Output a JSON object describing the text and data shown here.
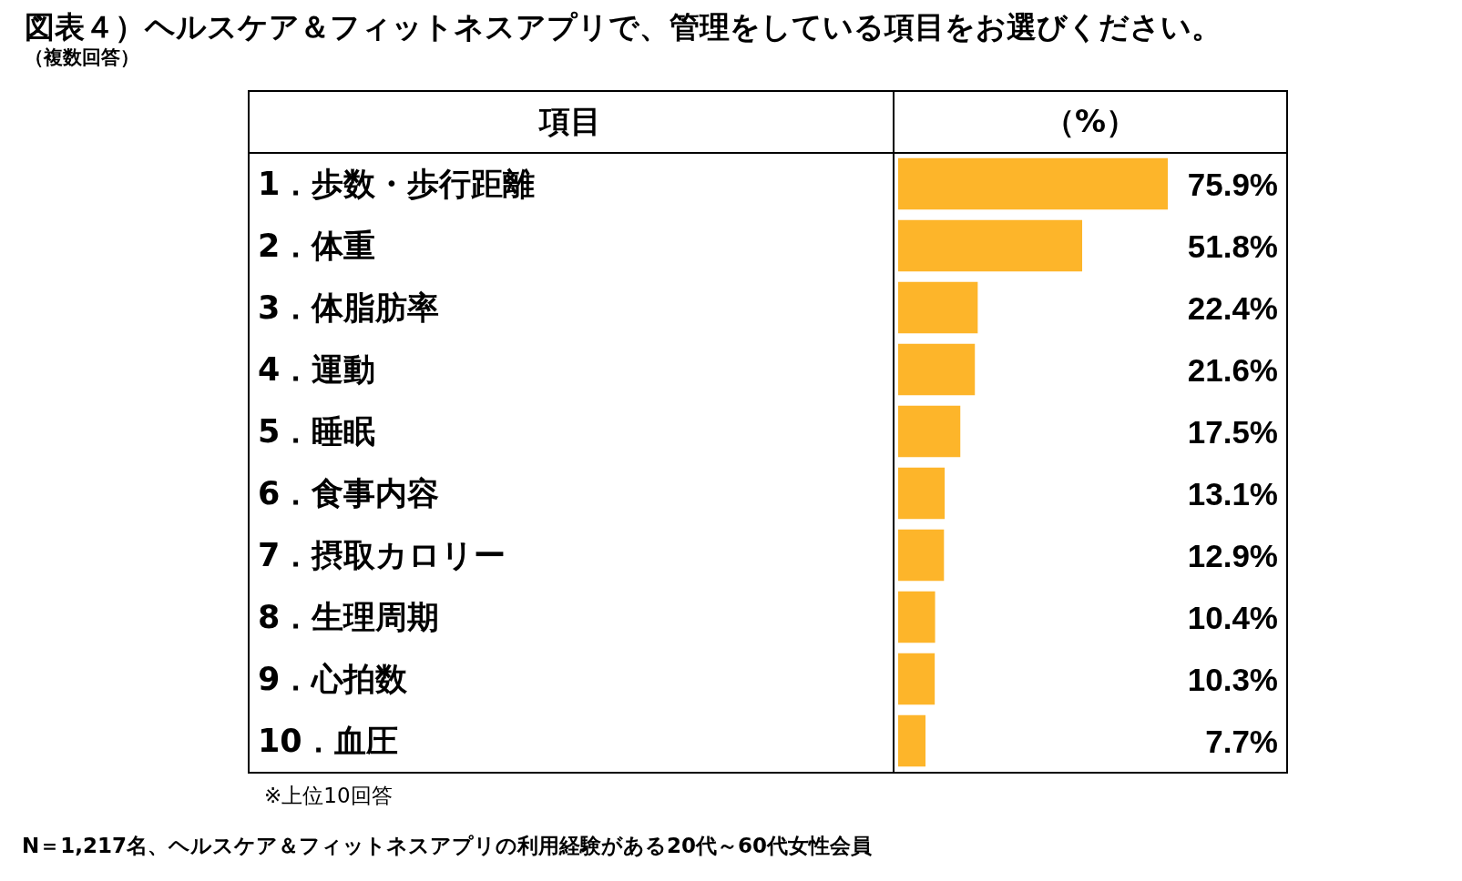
{
  "chart_data": {
    "type": "bar",
    "orientation": "horizontal",
    "title": "図表４）ヘルスケア＆フィットネスアプリで、管理をしている項目をお選びください。",
    "subtitle": "（複数回答）",
    "ylabel": "項目",
    "xlabel": "（%）",
    "categories": [
      "1．歩数・歩行距離",
      "2．体重",
      "3．体脂肪率",
      "4．運動",
      "5．睡眠",
      "6．食事内容",
      "7．摂取カロリー",
      "8．生理周期",
      "9．心拍数",
      "10．血圧"
    ],
    "values": [
      75.9,
      51.8,
      22.4,
      21.6,
      17.5,
      13.1,
      12.9,
      10.4,
      10.3,
      7.7
    ],
    "value_labels": [
      "75.9%",
      "51.8%",
      "22.4%",
      "21.6%",
      "17.5%",
      "13.1%",
      "12.9%",
      "10.4%",
      "10.3%",
      "7.7%"
    ],
    "color": "#fdb52a",
    "grid": false,
    "tick_labels": "y",
    "annotations": [
      "※上位10回答",
      "N＝1,217名、ヘルスケア＆フィットネスアプリの利用経験がある20代～60代女性会員"
    ]
  }
}
